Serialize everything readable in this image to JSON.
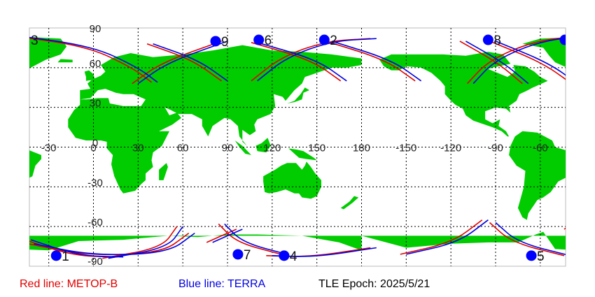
{
  "map": {
    "land_color": "#00cc00",
    "ocean_color": "#ffffff",
    "grid_color": "#000000",
    "lat_labels": [
      "90",
      "60",
      "30",
      "0",
      "-30",
      "-60",
      "-90"
    ],
    "lon_labels": [
      "-30",
      "0",
      "30",
      "60",
      "90",
      "120",
      "150",
      "180",
      "-150",
      "-120",
      "-90",
      "-60"
    ],
    "points": [
      {
        "label": "1",
        "lon": -25,
        "lat": -82,
        "color": "#0000ff"
      },
      {
        "label": "2",
        "lon": 155,
        "lat": 81,
        "color": "#0000ff"
      },
      {
        "label": "3",
        "lon": -49,
        "lat": 81,
        "color": "#0000ff"
      },
      {
        "label": "4",
        "lon": 128,
        "lat": -82,
        "color": "#0000ff"
      },
      {
        "label": "5",
        "lon": -66,
        "lat": -82,
        "color": "#0000ff"
      },
      {
        "label": "6",
        "lon": 111,
        "lat": 81,
        "color": "#0000ff"
      },
      {
        "label": "7",
        "lon": 97,
        "lat": -81,
        "color": "#0000ff"
      },
      {
        "label": "8",
        "lon": -95,
        "lat": 81,
        "color": "#0000ff"
      },
      {
        "label": "9",
        "lon": 82,
        "lat": 80,
        "color": "#0000ff"
      }
    ]
  },
  "legend": {
    "red_label": "Red line: METOP-B",
    "red_color": "#e00000",
    "blue_label": "Blue line: TERRA",
    "blue_color": "#0000e0",
    "epoch_label": "TLE Epoch: 2025/5/21"
  }
}
